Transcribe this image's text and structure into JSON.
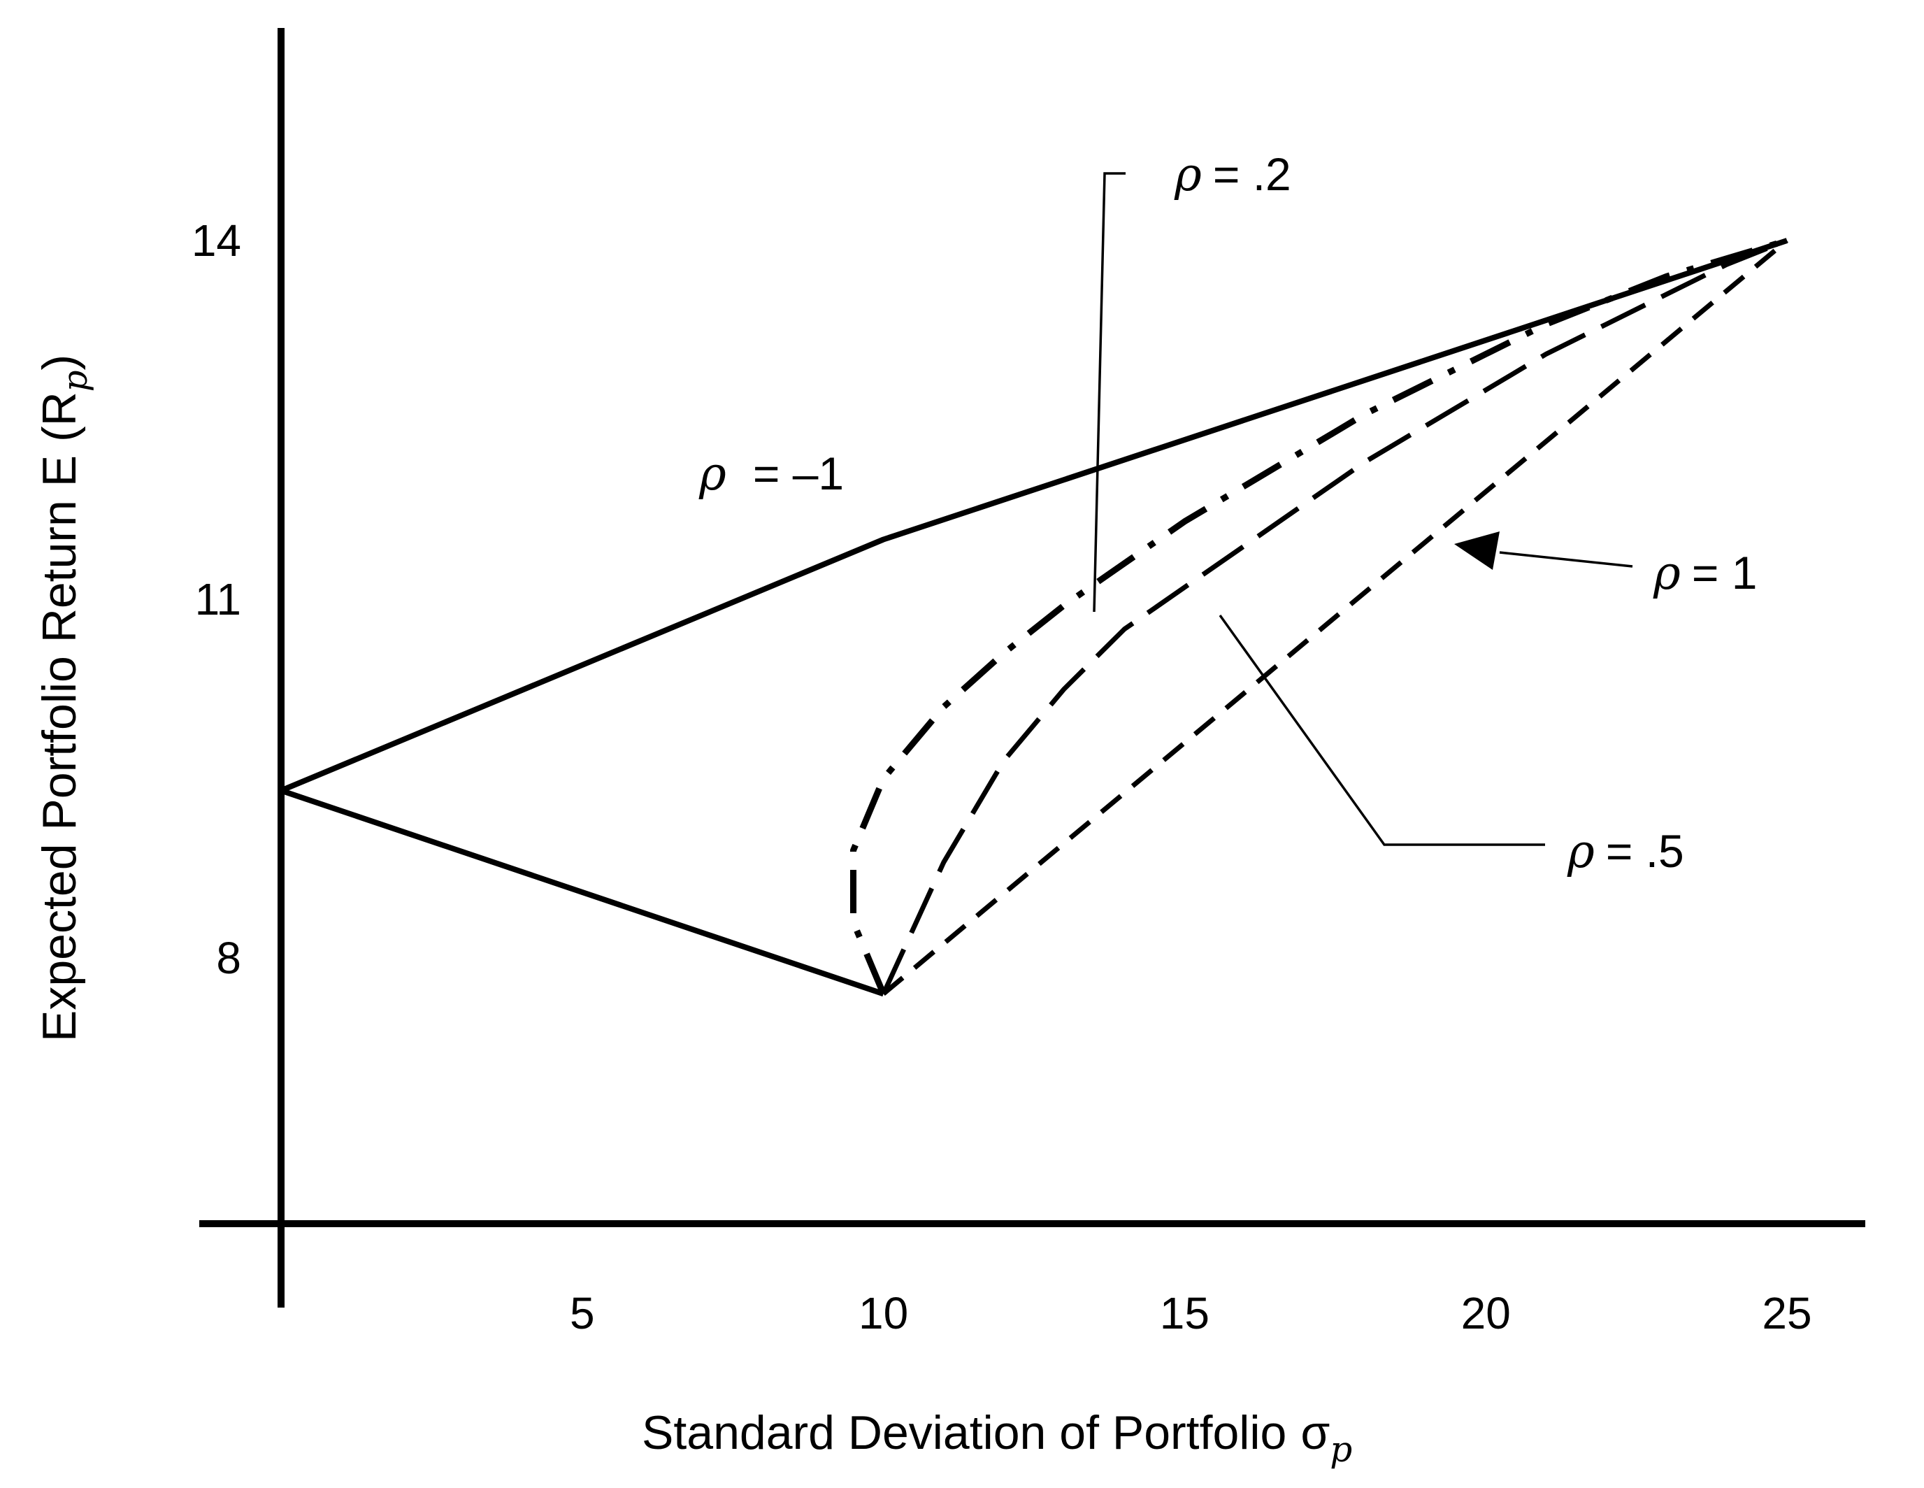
{
  "chart_data": {
    "type": "line",
    "xlabel": "Standard Deviation of Portfolio",
    "xlabel_symbol": "σ",
    "xlabel_sub": "p",
    "ylabel": "Expected Portfolio Return E (R",
    "ylabel_sub": "p",
    "ylabel_close": ")",
    "xlim": [
      0,
      26
    ],
    "ylim": [
      4.5,
      16.5
    ],
    "x_ticks": [
      5,
      10,
      15,
      20,
      25
    ],
    "y_ticks": [
      8,
      11,
      14
    ],
    "grid": false,
    "series": [
      {
        "name": "ρ = –1",
        "style": "solid",
        "x": [
          0,
          10,
          25
        ],
        "y": [
          9.4,
          11.5,
          14
        ],
        "x2": [
          0,
          10
        ],
        "y2": [
          9.4,
          7.7
        ]
      },
      {
        "name": "ρ = .2",
        "style": "dashdot",
        "x": [
          10,
          9.5,
          9.5,
          10,
          11,
          12,
          13,
          14,
          15,
          16,
          17,
          18,
          19,
          20,
          21,
          22,
          23,
          24,
          25
        ],
        "y": [
          7.7,
          8.3,
          8.9,
          9.5,
          10.1,
          10.55,
          10.95,
          11.3,
          11.65,
          11.95,
          12.25,
          12.55,
          12.8,
          13.05,
          13.3,
          13.5,
          13.7,
          13.85,
          14
        ]
      },
      {
        "name": "ρ = .5",
        "style": "longdash",
        "x": [
          10,
          11,
          12,
          13,
          14,
          15,
          16,
          17,
          18,
          19,
          20,
          21,
          22,
          23,
          24,
          25
        ],
        "y": [
          7.7,
          8.8,
          9.65,
          10.25,
          10.75,
          11.1,
          11.45,
          11.8,
          12.15,
          12.45,
          12.75,
          13.05,
          13.3,
          13.55,
          13.8,
          14
        ]
      },
      {
        "name": "ρ = 1",
        "style": "dashed",
        "x": [
          10,
          25
        ],
        "y": [
          7.7,
          14
        ]
      }
    ],
    "annotations": [
      {
        "text": "= .2",
        "symbol": "ρ"
      },
      {
        "text": "= –1",
        "symbol": "ρ"
      },
      {
        "text": "= 1",
        "symbol": "ρ"
      },
      {
        "text": "= .5",
        "symbol": "ρ"
      }
    ]
  }
}
